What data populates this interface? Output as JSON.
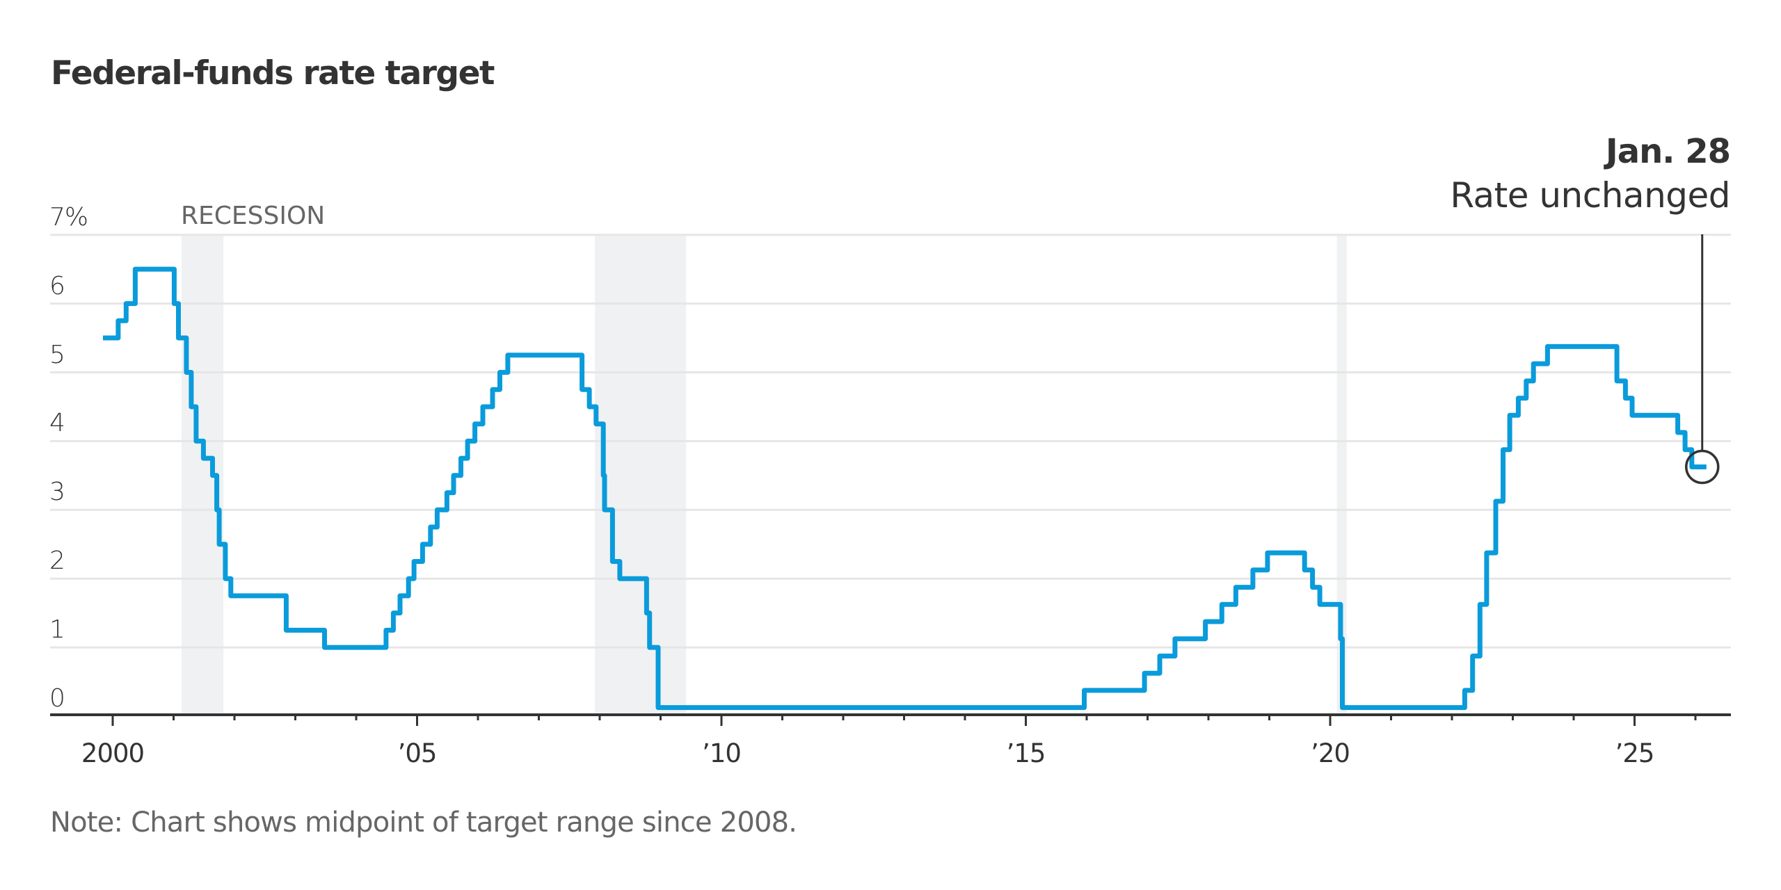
{
  "title": "Federal-funds rate target",
  "annotation": {
    "date": "Jan. 28",
    "text": "Rate unchanged"
  },
  "recession_label": "RECESSION",
  "note": "Note: Chart shows midpoint of target range since 2008.",
  "colors": {
    "line": "#0A9BDB",
    "recession": "#F0F1F3",
    "grid": "#E6E6E6",
    "axis": "#333333",
    "text": "#333333",
    "muted": "#666666"
  },
  "chart_data": {
    "type": "line",
    "style": "step",
    "title": "Federal-funds rate target",
    "xlabel": "",
    "ylabel": "%",
    "ylim": [
      0,
      7
    ],
    "xlim": [
      1999.0,
      2026.6
    ],
    "grid": true,
    "y_ticks": [
      {
        "value": 7,
        "label": "7%"
      },
      {
        "value": 6,
        "label": "6"
      },
      {
        "value": 5,
        "label": "5"
      },
      {
        "value": 4,
        "label": "4"
      },
      {
        "value": 3,
        "label": "3"
      },
      {
        "value": 2,
        "label": "2"
      },
      {
        "value": 1,
        "label": "1"
      },
      {
        "value": 0,
        "label": "0"
      }
    ],
    "x_ticks": [
      {
        "value": 2000,
        "label": "2000"
      },
      {
        "value": 2005,
        "label": "’05"
      },
      {
        "value": 2010,
        "label": "’10"
      },
      {
        "value": 2015,
        "label": "’15"
      },
      {
        "value": 2020,
        "label": "’20"
      },
      {
        "value": 2025,
        "label": "’25"
      }
    ],
    "x_minor_ticks": [
      2001,
      2002,
      2003,
      2004,
      2006,
      2007,
      2008,
      2009,
      2011,
      2012,
      2013,
      2014,
      2016,
      2017,
      2018,
      2019,
      2021,
      2022,
      2023,
      2024,
      2026
    ],
    "recessions": [
      {
        "start": 2001.13,
        "end": 2001.82,
        "label": "RECESSION"
      },
      {
        "start": 2007.92,
        "end": 2009.42
      },
      {
        "start": 2020.11,
        "end": 2020.27
      }
    ],
    "series": [
      {
        "name": "Federal-funds rate target",
        "unit": "%",
        "points": [
          [
            1999.84,
            5.5
          ],
          [
            2000.09,
            5.75
          ],
          [
            2000.22,
            6.0
          ],
          [
            2000.37,
            6.5
          ],
          [
            2001.01,
            6.0
          ],
          [
            2001.08,
            5.5
          ],
          [
            2001.21,
            5.0
          ],
          [
            2001.29,
            4.5
          ],
          [
            2001.37,
            4.0
          ],
          [
            2001.49,
            3.75
          ],
          [
            2001.64,
            3.5
          ],
          [
            2001.71,
            3.0
          ],
          [
            2001.75,
            2.5
          ],
          [
            2001.85,
            2.0
          ],
          [
            2001.94,
            1.75
          ],
          [
            2002.85,
            1.25
          ],
          [
            2003.48,
            1.0
          ],
          [
            2004.49,
            1.25
          ],
          [
            2004.61,
            1.5
          ],
          [
            2004.72,
            1.75
          ],
          [
            2004.86,
            2.0
          ],
          [
            2004.95,
            2.25
          ],
          [
            2005.09,
            2.5
          ],
          [
            2005.22,
            2.75
          ],
          [
            2005.33,
            3.0
          ],
          [
            2005.49,
            3.25
          ],
          [
            2005.6,
            3.5
          ],
          [
            2005.72,
            3.75
          ],
          [
            2005.83,
            4.0
          ],
          [
            2005.95,
            4.25
          ],
          [
            2006.08,
            4.5
          ],
          [
            2006.24,
            4.75
          ],
          [
            2006.36,
            5.0
          ],
          [
            2006.49,
            5.25
          ],
          [
            2007.71,
            4.75
          ],
          [
            2007.83,
            4.5
          ],
          [
            2007.94,
            4.25
          ],
          [
            2008.06,
            3.5
          ],
          [
            2008.08,
            3.0
          ],
          [
            2008.21,
            2.25
          ],
          [
            2008.33,
            2.0
          ],
          [
            2008.77,
            1.5
          ],
          [
            2008.82,
            1.0
          ],
          [
            2008.96,
            0.125
          ],
          [
            2015.96,
            0.375
          ],
          [
            2016.95,
            0.625
          ],
          [
            2017.2,
            0.875
          ],
          [
            2017.45,
            1.125
          ],
          [
            2017.95,
            1.375
          ],
          [
            2018.22,
            1.625
          ],
          [
            2018.45,
            1.875
          ],
          [
            2018.73,
            2.125
          ],
          [
            2018.97,
            2.375
          ],
          [
            2019.58,
            2.125
          ],
          [
            2019.71,
            1.875
          ],
          [
            2019.83,
            1.625
          ],
          [
            2020.17,
            1.125
          ],
          [
            2020.2,
            0.125
          ],
          [
            2022.21,
            0.375
          ],
          [
            2022.34,
            0.875
          ],
          [
            2022.46,
            1.625
          ],
          [
            2022.57,
            2.375
          ],
          [
            2022.72,
            3.125
          ],
          [
            2022.84,
            3.875
          ],
          [
            2022.95,
            4.375
          ],
          [
            2023.09,
            4.625
          ],
          [
            2023.22,
            4.875
          ],
          [
            2023.34,
            5.125
          ],
          [
            2023.57,
            5.375
          ],
          [
            2024.71,
            4.875
          ],
          [
            2024.85,
            4.625
          ],
          [
            2024.96,
            4.375
          ],
          [
            2025.71,
            4.125
          ],
          [
            2025.83,
            3.875
          ],
          [
            2025.94,
            3.625
          ],
          [
            2026.18,
            3.625
          ]
        ]
      }
    ],
    "annotations": [
      {
        "x": 2026.18,
        "y": 3.625,
        "title": "Jan. 28",
        "text": "Rate unchanged",
        "marker": "circle"
      }
    ],
    "note": "Note: Chart shows midpoint of target range since 2008."
  }
}
